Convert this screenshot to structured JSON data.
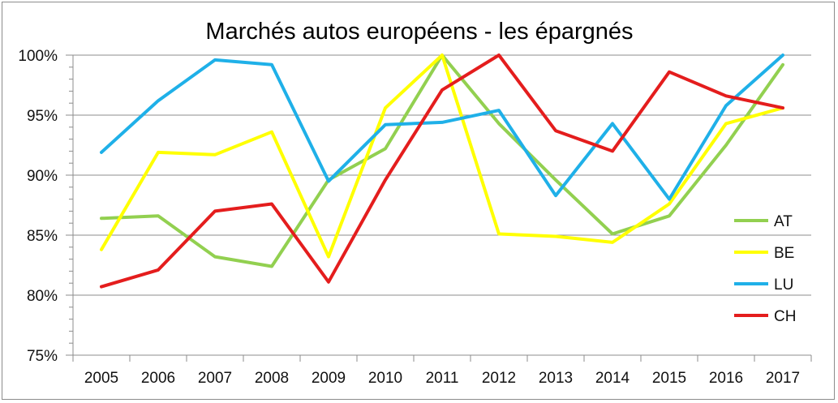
{
  "chart_data": {
    "type": "line",
    "title": "Marchés autos européens - les épargnés",
    "xlabel": "",
    "ylabel": "",
    "categories": [
      "2005",
      "2006",
      "2007",
      "2008",
      "2009",
      "2010",
      "2011",
      "2012",
      "2013",
      "2014",
      "2015",
      "2016",
      "2017"
    ],
    "ylim": [
      75,
      100
    ],
    "yticks": [
      {
        "value": 75,
        "label": "75%"
      },
      {
        "value": 80,
        "label": "80%"
      },
      {
        "value": 85,
        "label": "85%"
      },
      {
        "value": 90,
        "label": "90%"
      },
      {
        "value": 95,
        "label": "95%"
      },
      {
        "value": 100,
        "label": "100%"
      }
    ],
    "grid": true,
    "legend_position": "right",
    "series": [
      {
        "name": "AT",
        "color": "#92d050",
        "values": [
          86.4,
          86.6,
          83.2,
          82.4,
          89.6,
          92.2,
          100.0,
          94.3,
          89.6,
          85.1,
          86.6,
          92.5,
          99.2
        ]
      },
      {
        "name": "BE",
        "color": "#ffff00",
        "values": [
          83.8,
          91.9,
          91.7,
          93.6,
          83.2,
          95.6,
          100.0,
          85.1,
          84.9,
          84.4,
          87.6,
          94.3,
          95.6
        ]
      },
      {
        "name": "LU",
        "color": "#1fb0e8",
        "values": [
          91.9,
          96.2,
          99.6,
          99.2,
          89.5,
          94.2,
          94.4,
          95.4,
          88.3,
          94.3,
          88.0,
          95.8,
          100.0
        ]
      },
      {
        "name": "CH",
        "color": "#e41d1d",
        "values": [
          80.7,
          82.1,
          87.0,
          87.6,
          81.1,
          89.6,
          97.1,
          100.0,
          93.7,
          92.0,
          98.6,
          96.6,
          95.6
        ]
      }
    ]
  }
}
